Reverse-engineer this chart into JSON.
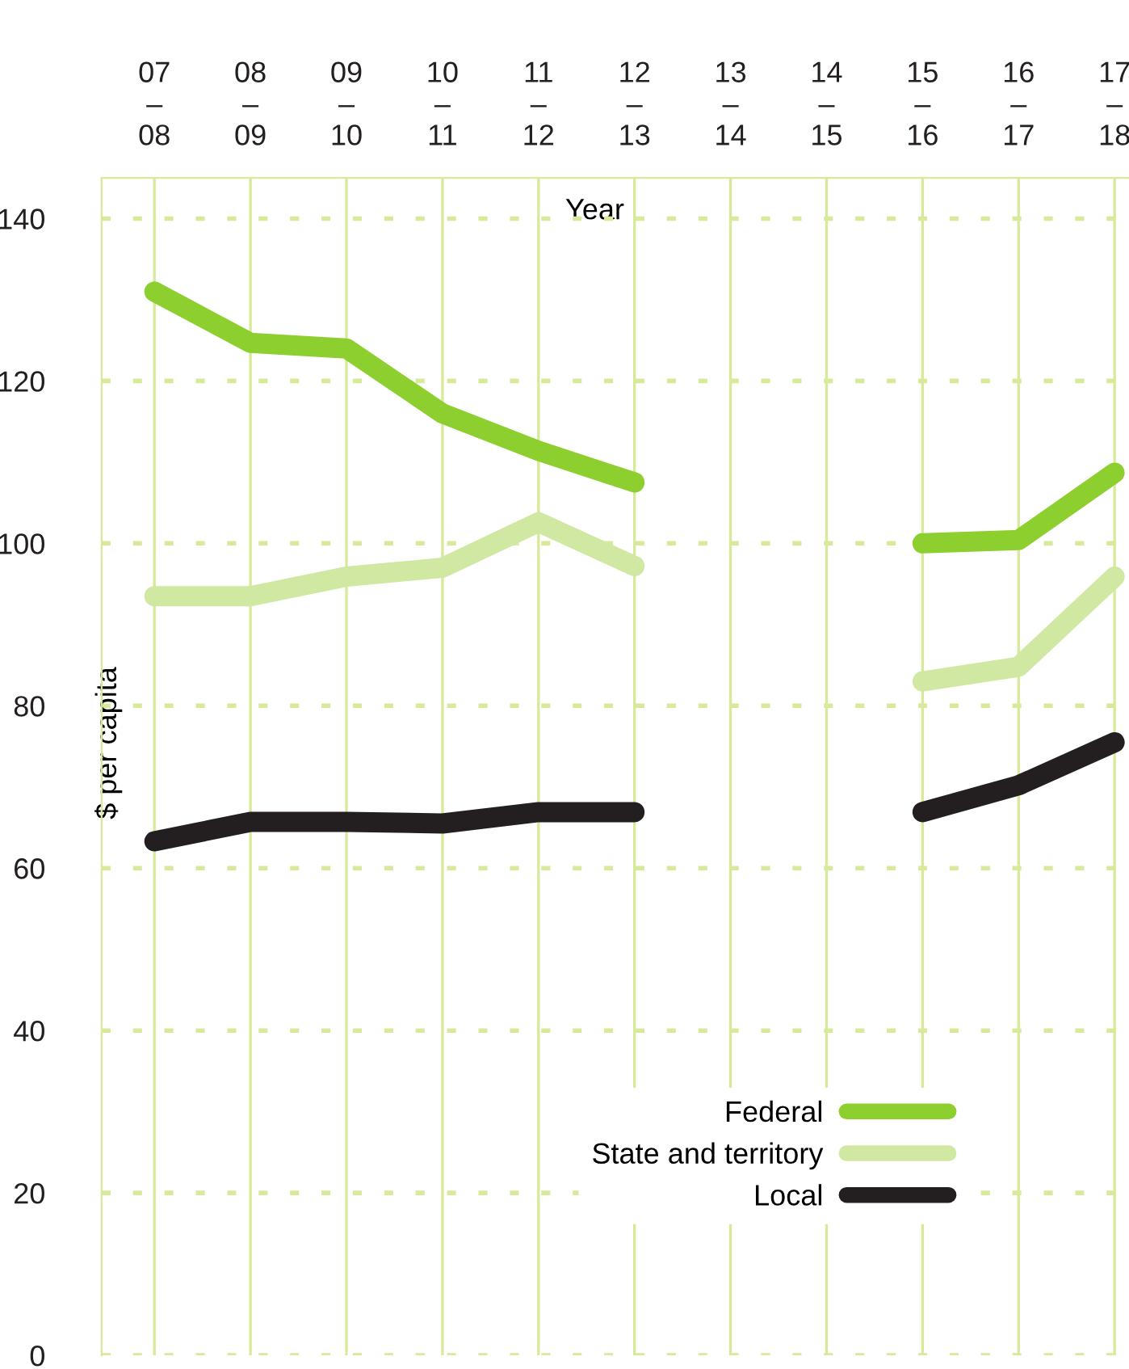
{
  "chart_data": {
    "type": "line",
    "xlabel": "Year",
    "ylabel": "$ per capita",
    "categories": [
      "07\n–\n08",
      "08\n–\n09",
      "09\n–\n10",
      "10\n–\n11",
      "11\n–\n12",
      "12\n–\n13",
      "13\n–\n14",
      "14\n–\n15",
      "15\n–\n16",
      "16\n–\n17",
      "17\n–\n18"
    ],
    "series": [
      {
        "name": "Federal",
        "color": "#8dcf2f",
        "values": [
          131,
          124.7,
          124,
          116,
          111.4,
          107.5,
          null,
          null,
          100,
          100.4,
          108.7
        ]
      },
      {
        "name": "State and territory",
        "color": "#d0e8a2",
        "values": [
          93.5,
          93.5,
          95.9,
          97,
          102.6,
          97.2,
          null,
          null,
          83,
          84.8,
          95.9
        ]
      },
      {
        "name": "Local",
        "color": "#231f20",
        "values": [
          63.3,
          65.7,
          65.7,
          65.5,
          66.9,
          66.9,
          null,
          null,
          66.9,
          70.2,
          75.5
        ]
      }
    ],
    "ylim": [
      0,
      145
    ],
    "yticks": [
      0,
      20,
      40,
      60,
      80,
      100,
      120,
      140
    ],
    "grid": true,
    "legend": "bottom right",
    "line_style": "solid"
  }
}
